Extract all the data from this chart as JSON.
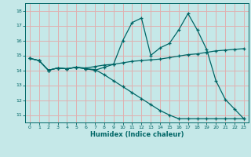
{
  "xlabel": "Humidex (Indice chaleur)",
  "bg_color": "#c5e8e8",
  "grid_color": "#e0b0b0",
  "line_color": "#006666",
  "ylim": [
    10.5,
    18.5
  ],
  "xlim": [
    -0.5,
    23.5
  ],
  "yticks": [
    11,
    12,
    13,
    14,
    15,
    16,
    17,
    18
  ],
  "xticks": [
    0,
    1,
    2,
    3,
    4,
    5,
    6,
    7,
    8,
    9,
    10,
    11,
    12,
    13,
    14,
    15,
    16,
    17,
    18,
    19,
    20,
    21,
    22,
    23
  ],
  "series1_x": [
    0,
    1,
    2,
    3,
    4,
    5,
    6,
    7,
    8,
    9,
    10,
    11,
    12,
    13,
    14,
    15,
    16,
    17,
    18,
    19,
    20,
    21,
    22,
    23
  ],
  "series1_y": [
    14.8,
    14.65,
    14.0,
    14.15,
    14.1,
    14.2,
    14.1,
    14.0,
    14.2,
    14.4,
    16.0,
    17.2,
    17.5,
    15.0,
    15.5,
    15.8,
    16.7,
    17.8,
    16.7,
    15.4,
    13.3,
    12.05,
    11.4,
    10.75
  ],
  "series2_x": [
    0,
    1,
    2,
    3,
    4,
    5,
    6,
    7,
    8,
    9,
    10,
    11,
    12,
    13,
    14,
    15,
    16,
    17,
    18,
    19,
    20,
    21,
    22,
    23
  ],
  "series2_y": [
    14.8,
    14.65,
    14.0,
    14.15,
    14.1,
    14.2,
    14.15,
    14.25,
    14.35,
    14.4,
    14.5,
    14.6,
    14.65,
    14.7,
    14.75,
    14.85,
    14.95,
    15.05,
    15.1,
    15.2,
    15.3,
    15.35,
    15.4,
    15.45
  ],
  "series3_x": [
    0,
    1,
    2,
    3,
    4,
    5,
    6,
    7,
    8,
    9,
    10,
    11,
    12,
    13,
    14,
    15,
    16,
    17,
    18,
    19,
    20,
    21,
    22,
    23
  ],
  "series3_y": [
    14.8,
    14.65,
    14.0,
    14.15,
    14.1,
    14.2,
    14.1,
    14.05,
    13.7,
    13.3,
    12.9,
    12.5,
    12.1,
    11.7,
    11.3,
    11.0,
    10.75,
    10.75,
    10.75,
    10.75,
    10.75,
    10.75,
    10.75,
    10.75
  ]
}
